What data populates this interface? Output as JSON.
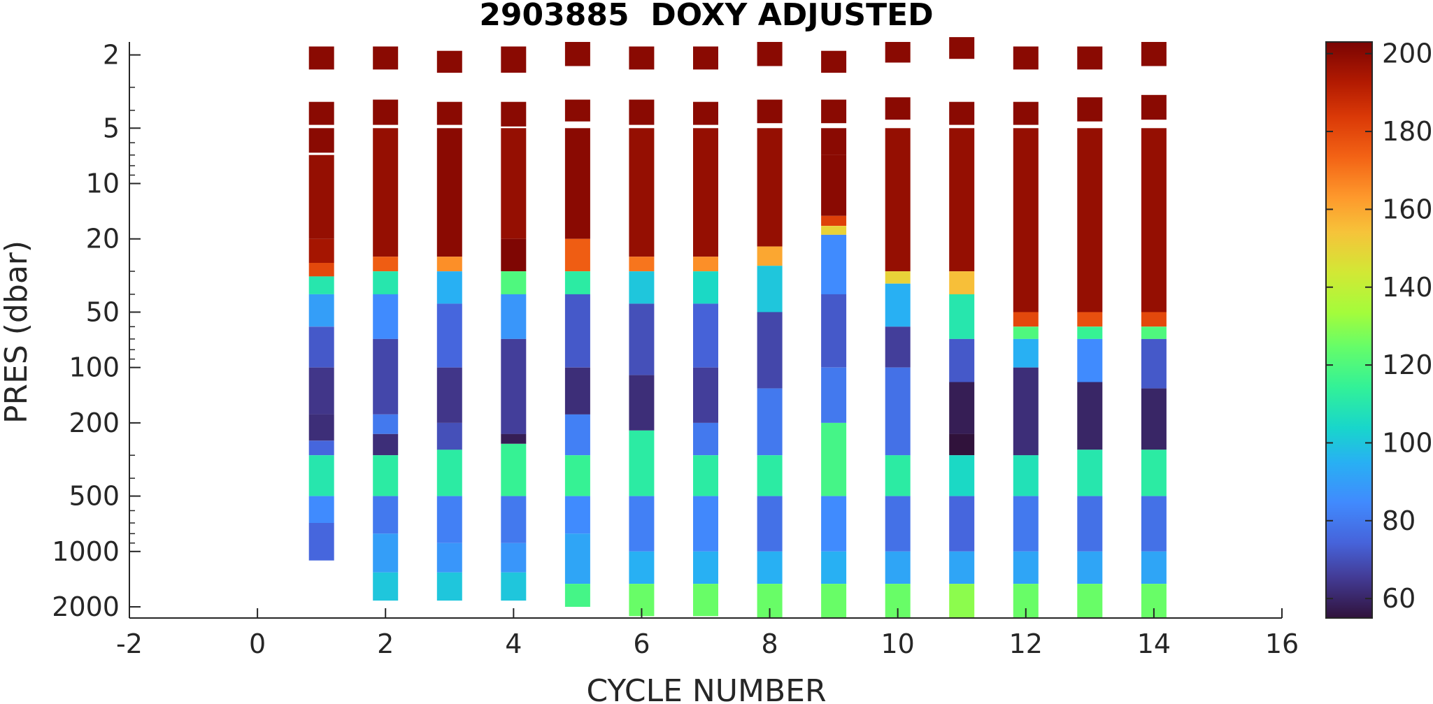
{
  "chart_data": {
    "type": "heatmap",
    "title": "2903885  DOXY ADJUSTED",
    "xlabel": "CYCLE NUMBER",
    "ylabel": "PRES (dbar)",
    "xlim": [
      -2,
      16
    ],
    "xticks": [
      -2,
      0,
      2,
      4,
      6,
      8,
      10,
      12,
      14,
      16
    ],
    "y_scale": "log",
    "y_reversed": true,
    "ylim": [
      1.7,
      2300
    ],
    "yticks": [
      2,
      5,
      10,
      20,
      50,
      100,
      200,
      500,
      1000,
      2000
    ],
    "colorbar": {
      "colormap": "turbo",
      "clim": [
        55,
        203
      ],
      "ticks": [
        60,
        80,
        100,
        120,
        140,
        160,
        180,
        200
      ]
    },
    "profiles": [
      {
        "cycle": 1,
        "max_pres": 1120,
        "segments": [
          [
            1.8,
            2.4,
            200
          ],
          [
            3.6,
            4.8,
            200
          ],
          [
            5,
            6.8,
            200
          ],
          [
            7,
            20,
            198
          ],
          [
            20,
            27,
            195
          ],
          [
            27,
            32,
            180
          ],
          [
            32,
            40,
            110
          ],
          [
            40,
            60,
            90
          ],
          [
            60,
            100,
            72
          ],
          [
            100,
            180,
            64
          ],
          [
            180,
            250,
            62
          ],
          [
            250,
            300,
            75
          ],
          [
            300,
            500,
            110
          ],
          [
            500,
            700,
            85
          ],
          [
            700,
            1120,
            75
          ]
        ]
      },
      {
        "cycle": 2,
        "max_pres": 1850,
        "segments": [
          [
            1.8,
            2.4,
            200
          ],
          [
            3.5,
            4.8,
            200
          ],
          [
            5,
            25,
            198
          ],
          [
            25,
            30,
            175
          ],
          [
            30,
            40,
            110
          ],
          [
            40,
            70,
            85
          ],
          [
            70,
            180,
            68
          ],
          [
            180,
            230,
            80
          ],
          [
            230,
            300,
            62
          ],
          [
            300,
            500,
            112
          ],
          [
            500,
            800,
            80
          ],
          [
            800,
            1300,
            90
          ],
          [
            1300,
            1850,
            100
          ]
        ]
      },
      {
        "cycle": 3,
        "max_pres": 1850,
        "segments": [
          [
            1.9,
            2.5,
            200
          ],
          [
            3.6,
            4.8,
            200
          ],
          [
            5,
            25,
            200
          ],
          [
            25,
            30,
            165
          ],
          [
            30,
            45,
            95
          ],
          [
            45,
            100,
            75
          ],
          [
            100,
            200,
            64
          ],
          [
            200,
            280,
            70
          ],
          [
            280,
            500,
            112
          ],
          [
            500,
            900,
            82
          ],
          [
            900,
            1300,
            88
          ],
          [
            1300,
            1850,
            100
          ]
        ]
      },
      {
        "cycle": 4,
        "max_pres": 1850,
        "segments": [
          [
            1.8,
            2.5,
            200
          ],
          [
            3.6,
            4.9,
            200
          ],
          [
            5,
            20,
            198
          ],
          [
            20,
            30,
            202
          ],
          [
            30,
            40,
            120
          ],
          [
            40,
            70,
            88
          ],
          [
            70,
            230,
            66
          ],
          [
            230,
            260,
            58
          ],
          [
            260,
            500,
            115
          ],
          [
            500,
            900,
            80
          ],
          [
            900,
            1300,
            88
          ],
          [
            1300,
            1850,
            100
          ]
        ]
      },
      {
        "cycle": 5,
        "max_pres": 2000,
        "segments": [
          [
            1.7,
            2.3,
            200
          ],
          [
            3.5,
            4.6,
            200
          ],
          [
            5,
            20,
            200
          ],
          [
            20,
            30,
            175
          ],
          [
            30,
            40,
            112
          ],
          [
            40,
            100,
            72
          ],
          [
            100,
            180,
            62
          ],
          [
            180,
            300,
            82
          ],
          [
            300,
            500,
            115
          ],
          [
            500,
            800,
            85
          ],
          [
            800,
            1500,
            92
          ],
          [
            1500,
            2000,
            118
          ]
        ]
      },
      {
        "cycle": 6,
        "max_pres": 2250,
        "segments": [
          [
            1.8,
            2.4,
            200
          ],
          [
            3.5,
            4.8,
            200
          ],
          [
            5,
            25,
            198
          ],
          [
            25,
            30,
            170
          ],
          [
            30,
            45,
            100
          ],
          [
            45,
            110,
            70
          ],
          [
            110,
            220,
            62
          ],
          [
            220,
            500,
            112
          ],
          [
            500,
            1000,
            82
          ],
          [
            1000,
            1500,
            95
          ],
          [
            1500,
            2250,
            125
          ]
        ]
      },
      {
        "cycle": 7,
        "max_pres": 2250,
        "segments": [
          [
            1.8,
            2.4,
            200
          ],
          [
            3.6,
            4.8,
            200
          ],
          [
            5,
            25,
            198
          ],
          [
            25,
            30,
            165
          ],
          [
            30,
            45,
            105
          ],
          [
            45,
            100,
            74
          ],
          [
            100,
            200,
            66
          ],
          [
            200,
            300,
            80
          ],
          [
            300,
            500,
            112
          ],
          [
            500,
            1000,
            84
          ],
          [
            1000,
            1500,
            95
          ],
          [
            1500,
            2250,
            125
          ]
        ]
      },
      {
        "cycle": 8,
        "max_pres": 2300,
        "segments": [
          [
            1.7,
            2.3,
            200
          ],
          [
            3.5,
            4.7,
            200
          ],
          [
            5,
            22,
            198
          ],
          [
            22,
            28,
            160
          ],
          [
            28,
            50,
            100
          ],
          [
            50,
            130,
            68
          ],
          [
            130,
            300,
            80
          ],
          [
            300,
            500,
            112
          ],
          [
            500,
            1000,
            78
          ],
          [
            1000,
            1500,
            95
          ],
          [
            1500,
            2300,
            125
          ]
        ]
      },
      {
        "cycle": 9,
        "max_pres": 2300,
        "segments": [
          [
            1.9,
            2.5,
            200
          ],
          [
            3.5,
            4.7,
            200
          ],
          [
            5,
            7,
            200
          ],
          [
            7,
            15,
            200
          ],
          [
            15,
            17,
            182
          ],
          [
            17,
            19,
            150
          ],
          [
            19,
            40,
            85
          ],
          [
            40,
            100,
            72
          ],
          [
            100,
            200,
            80
          ],
          [
            200,
            500,
            118
          ],
          [
            500,
            1000,
            85
          ],
          [
            1000,
            1500,
            95
          ],
          [
            1500,
            2300,
            125
          ]
        ]
      },
      {
        "cycle": 10,
        "max_pres": 2300,
        "segments": [
          [
            1.7,
            2.2,
            200
          ],
          [
            3.4,
            4.5,
            200
          ],
          [
            5,
            30,
            198
          ],
          [
            30,
            35,
            150
          ],
          [
            35,
            60,
            95
          ],
          [
            60,
            100,
            66
          ],
          [
            100,
            300,
            78
          ],
          [
            300,
            500,
            112
          ],
          [
            500,
            1000,
            78
          ],
          [
            1000,
            1500,
            92
          ],
          [
            1500,
            2300,
            125
          ]
        ]
      },
      {
        "cycle": 11,
        "max_pres": 2300,
        "segments": [
          [
            1.6,
            2.1,
            200
          ],
          [
            3.6,
            4.8,
            200
          ],
          [
            5,
            30,
            198
          ],
          [
            30,
            40,
            155
          ],
          [
            40,
            70,
            110
          ],
          [
            70,
            120,
            72
          ],
          [
            120,
            230,
            58
          ],
          [
            230,
            300,
            55
          ],
          [
            300,
            500,
            105
          ],
          [
            500,
            1000,
            75
          ],
          [
            1000,
            1500,
            92
          ],
          [
            1500,
            2300,
            130
          ]
        ]
      },
      {
        "cycle": 12,
        "max_pres": 2300,
        "segments": [
          [
            1.8,
            2.4,
            200
          ],
          [
            3.6,
            4.8,
            200
          ],
          [
            5,
            50,
            198
          ],
          [
            50,
            60,
            180
          ],
          [
            60,
            70,
            120
          ],
          [
            70,
            100,
            95
          ],
          [
            100,
            300,
            62
          ],
          [
            300,
            500,
            108
          ],
          [
            500,
            1000,
            80
          ],
          [
            1000,
            1500,
            92
          ],
          [
            1500,
            2300,
            125
          ]
        ]
      },
      {
        "cycle": 13,
        "max_pres": 2300,
        "segments": [
          [
            1.8,
            2.4,
            200
          ],
          [
            3.4,
            4.6,
            200
          ],
          [
            5,
            50,
            198
          ],
          [
            50,
            60,
            178
          ],
          [
            60,
            70,
            115
          ],
          [
            70,
            120,
            85
          ],
          [
            120,
            280,
            60
          ],
          [
            280,
            500,
            110
          ],
          [
            500,
            1000,
            78
          ],
          [
            1000,
            1500,
            92
          ],
          [
            1500,
            2300,
            125
          ]
        ]
      },
      {
        "cycle": 14,
        "max_pres": 2300,
        "segments": [
          [
            1.7,
            2.3,
            200
          ],
          [
            3.3,
            4.5,
            200
          ],
          [
            5,
            50,
            198
          ],
          [
            50,
            60,
            180
          ],
          [
            60,
            70,
            120
          ],
          [
            70,
            130,
            72
          ],
          [
            130,
            280,
            60
          ],
          [
            280,
            500,
            112
          ],
          [
            500,
            1000,
            78
          ],
          [
            1000,
            1500,
            92
          ],
          [
            1500,
            2300,
            125
          ]
        ]
      }
    ]
  }
}
